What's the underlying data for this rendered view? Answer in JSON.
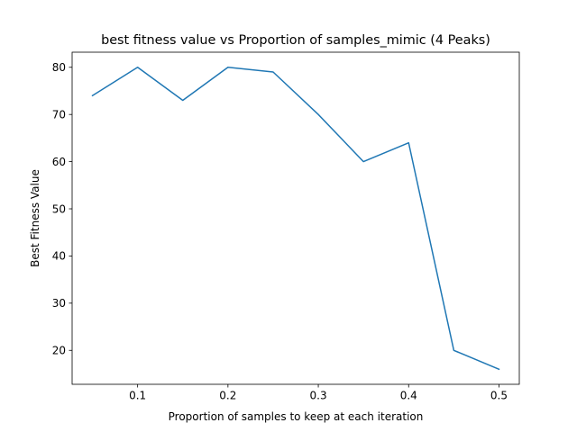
{
  "chart_data": {
    "type": "line",
    "title": "best fitness value vs Proportion of samples_mimic (4 Peaks)",
    "xlabel": "Proportion of samples to keep at each iteration",
    "ylabel": "Best Fitness Value",
    "xlim": [
      0.0275,
      0.5225
    ],
    "ylim": [
      12.8,
      83.2
    ],
    "xticks": [
      0.1,
      0.2,
      0.3,
      0.4,
      0.5
    ],
    "xtick_labels": [
      "0.1",
      "0.2",
      "0.3",
      "0.4",
      "0.5"
    ],
    "yticks": [
      20,
      30,
      40,
      50,
      60,
      70,
      80
    ],
    "ytick_labels": [
      "20",
      "30",
      "40",
      "50",
      "60",
      "70",
      "80"
    ],
    "grid": false,
    "series": [
      {
        "color": "#1f77b4",
        "x": [
          0.05,
          0.1,
          0.15,
          0.2,
          0.25,
          0.3,
          0.35,
          0.4,
          0.45,
          0.5
        ],
        "y": [
          74,
          80,
          73,
          80,
          79,
          70,
          60,
          64,
          20,
          16
        ]
      }
    ]
  }
}
